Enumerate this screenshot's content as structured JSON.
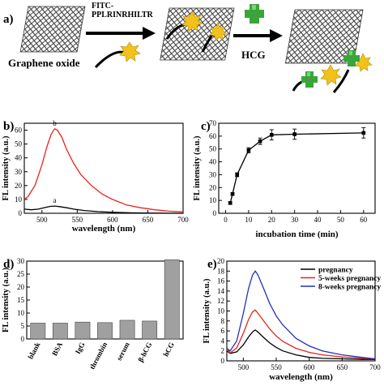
{
  "panel_a": {
    "label": "a)",
    "graphene_label": "Graphene oxide",
    "probe_label_line1": "FITC-",
    "probe_label_line2": "PPLRINRHILTR",
    "target_label": "HCG",
    "colors": {
      "sheet": "#4a4a4a",
      "fluorophore": "#f2c21b",
      "hcg": "#3aa53a"
    }
  },
  "chart_data": [
    {
      "panel": "b)",
      "type": "line",
      "xlabel": "wavelength (nm)",
      "ylabel": "FL intensity (a.u.)",
      "xlim": [
        475,
        700
      ],
      "ylim": [
        0,
        65
      ],
      "xticks": [
        500,
        550,
        600,
        650,
        700
      ],
      "yticks": [
        0,
        10,
        20,
        30,
        40,
        50,
        60
      ],
      "grid": false,
      "series": [
        {
          "name": "a",
          "color": "#000000",
          "x": [
            475,
            485,
            495,
            505,
            512,
            518,
            525,
            535,
            545,
            560,
            580,
            600,
            630,
            660,
            700
          ],
          "y": [
            3.0,
            2.5,
            3.0,
            4.3,
            5.0,
            5.2,
            4.8,
            4.0,
            3.0,
            2.0,
            1.2,
            0.7,
            0.3,
            0.1,
            0.0
          ]
        },
        {
          "name": "b",
          "color": "#e8231d",
          "x": [
            475,
            480,
            490,
            500,
            507,
            513,
            518,
            522,
            528,
            535,
            545,
            555,
            570,
            585,
            600,
            620,
            640,
            660,
            680,
            700
          ],
          "y": [
            10.0,
            12.0,
            20.0,
            35.0,
            48.0,
            57.0,
            61.0,
            60.0,
            55.0,
            46.0,
            36.0,
            28.0,
            20.0,
            14.0,
            10.0,
            6.0,
            4.0,
            2.5,
            1.5,
            1.0
          ]
        }
      ]
    },
    {
      "panel": "c)",
      "type": "line",
      "xlabel": "incubation time (min)",
      "ylabel": "FL intensity (a.u.)",
      "xlim": [
        -3,
        65
      ],
      "ylim": [
        0,
        70
      ],
      "xticks": [
        0,
        10,
        20,
        30,
        40,
        50,
        60
      ],
      "yticks": [
        0,
        10,
        20,
        30,
        40,
        50,
        60,
        70
      ],
      "grid": false,
      "series": [
        {
          "x": [
            2,
            3,
            5,
            10,
            15,
            20,
            30,
            60
          ],
          "y": [
            8,
            15,
            30,
            49,
            56,
            61,
            61.5,
            62.5
          ],
          "err": [
            1,
            1,
            1.5,
            2,
            2.5,
            4,
            4,
            4
          ]
        }
      ]
    },
    {
      "panel": "d)",
      "type": "bar",
      "ylabel": "FL intensity (a.u.)",
      "ylim": [
        0,
        30
      ],
      "yticks": [
        0,
        5,
        10,
        15,
        20,
        25,
        30
      ],
      "categories": [
        "blank",
        "BSA",
        "IgG",
        "thrombin",
        "serum",
        "β-hCG",
        "hCG"
      ],
      "values": [
        6.1,
        6.1,
        6.5,
        6.3,
        7.2,
        6.9,
        30.5
      ],
      "bar_color": "#a0a0a0"
    },
    {
      "panel": "e)",
      "type": "line",
      "xlabel": "wavelength (nm)",
      "ylabel": "FL intensity (a.u.)",
      "xlim": [
        475,
        700
      ],
      "ylim": [
        0,
        20
      ],
      "xticks": [
        500,
        550,
        600,
        650,
        700
      ],
      "yticks": [
        0,
        2,
        4,
        6,
        8,
        10,
        12,
        14,
        16,
        18,
        20
      ],
      "legend": "top-right",
      "series": [
        {
          "name": "pregnancy",
          "color": "#000000",
          "x": [
            475,
            480,
            490,
            500,
            508,
            514,
            518,
            522,
            530,
            540,
            550,
            560,
            580,
            600,
            620,
            650,
            680,
            700
          ],
          "y": [
            2.0,
            1.5,
            1.8,
            3.2,
            4.8,
            5.8,
            6.2,
            5.8,
            4.8,
            3.6,
            2.7,
            2.0,
            1.2,
            0.7,
            0.5,
            0.4,
            0.3,
            0.3
          ]
        },
        {
          "name": "5-weeks  pregnancy",
          "color": "#e8231d",
          "x": [
            475,
            480,
            490,
            500,
            508,
            514,
            518,
            522,
            530,
            540,
            550,
            560,
            580,
            600,
            620,
            650,
            680,
            700
          ],
          "y": [
            2.2,
            1.6,
            2.6,
            5.5,
            8.3,
            9.8,
            10.2,
            9.6,
            8.2,
            6.4,
            5.0,
            3.9,
            2.5,
            1.7,
            1.2,
            0.8,
            0.5,
            0.4
          ]
        },
        {
          "name": "8-weeks  pregnancy",
          "color": "#2630b8",
          "x": [
            475,
            480,
            490,
            500,
            508,
            514,
            518,
            522,
            530,
            540,
            550,
            560,
            580,
            600,
            620,
            650,
            680,
            700
          ],
          "y": [
            2.5,
            2.0,
            4.0,
            9.5,
            14.5,
            17.2,
            18.0,
            17.3,
            14.8,
            11.5,
            9.0,
            7.2,
            4.5,
            3.0,
            2.0,
            1.2,
            0.7,
            0.4
          ]
        }
      ]
    }
  ]
}
